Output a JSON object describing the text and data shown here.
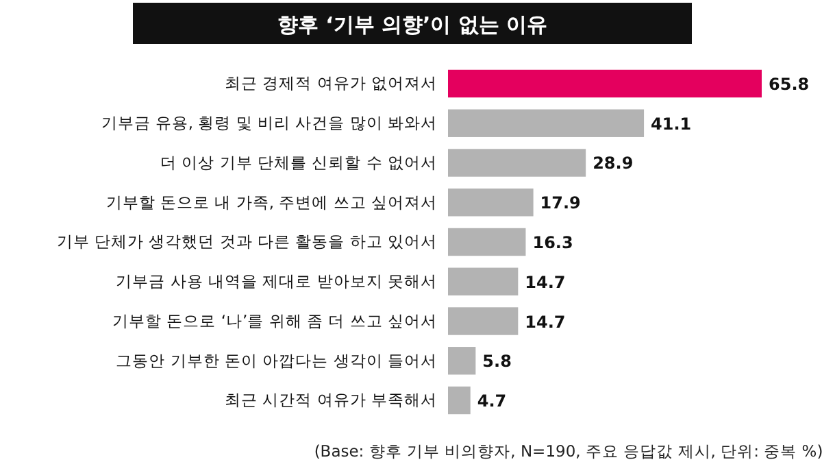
{
  "chart_data": {
    "type": "bar",
    "orientation": "horizontal",
    "title": "향후 ‘기부 의향’이 없는 이유",
    "categories": [
      "최근 경제적 여유가 없어져서",
      "기부금 유용, 횡령 및 비리 사건을 많이 봐와서",
      "더 이상 기부 단체를 신뢰할 수 없어서",
      "기부할 돈으로 내 가족, 주변에 쓰고 싶어져서",
      "기부 단체가 생각했던 것과 다른 활동을 하고 있어서",
      "기부금 사용 내역을 제대로 받아보지 못해서",
      "기부할 돈으로 ‘나’를 위해 좀 더 쓰고 싶어서",
      "그동안 기부한 돈이 아깝다는 생각이 들어서",
      "최근 시간적 여유가 부족해서"
    ],
    "values": [
      65.8,
      41.1,
      28.9,
      17.9,
      16.3,
      14.7,
      14.7,
      5.8,
      4.7
    ],
    "colors": [
      "#e4005e",
      "#b3b3b3",
      "#b3b3b3",
      "#b3b3b3",
      "#b3b3b3",
      "#b3b3b3",
      "#b3b3b3",
      "#b3b3b3",
      "#b3b3b3"
    ],
    "data_labels": true,
    "annotations": [
      "(Base: 향후 기부 비의향자, N=190, 주요 응답값 제시, 단위: 중복 %)"
    ]
  }
}
